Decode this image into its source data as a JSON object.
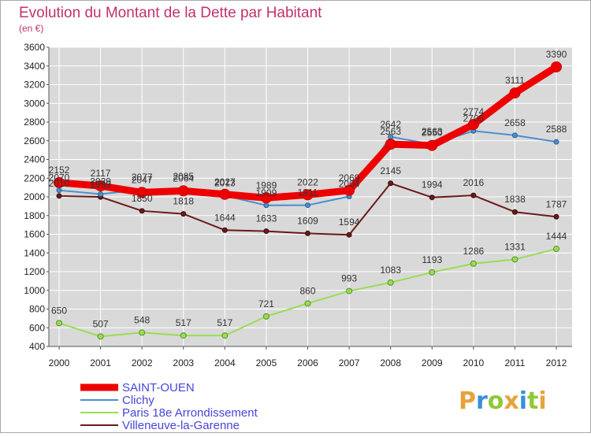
{
  "chart_data": {
    "type": "line",
    "title": "Evolution du Montant de la Dette par Habitant",
    "subtitle": "(en €)",
    "xlabel": "",
    "ylabel": "",
    "ylim": [
      400,
      3600
    ],
    "y_ticks": [
      400,
      600,
      800,
      1000,
      1200,
      1400,
      1600,
      1800,
      2000,
      2200,
      2400,
      2600,
      2800,
      3000,
      3200,
      3400,
      3600
    ],
    "categories": [
      "2000",
      "2001",
      "2002",
      "2003",
      "2004",
      "2005",
      "2006",
      "2007",
      "2008",
      "2009",
      "2010",
      "2011",
      "2012"
    ],
    "grid": true,
    "legend_position": "bottom-left",
    "series": [
      {
        "name": "SAINT-OUEN",
        "color": "#ee0000",
        "values": [
          2152,
          2117,
          2047,
          2064,
          2027,
          1989,
          2022,
          2069,
          2563,
          2550,
          2774,
          3111,
          3390
        ],
        "labels": [
          "2152",
          "2117",
          "2047",
          "2064",
          "2027",
          "1989",
          "2022",
          "2069",
          "2563",
          "2550",
          "2774",
          "3111",
          "3390"
        ]
      },
      {
        "name": "Clichy",
        "color": "#4a8fd0",
        "values": [
          2070,
          2029,
          2077,
          2085,
          2013,
          1909,
          1911,
          2004,
          2642,
          2563,
          2705,
          2658,
          2588
        ],
        "labels": [
          "2070",
          "2029",
          "2077",
          "2085",
          "2013",
          "1909",
          "1911",
          "2004",
          "2642",
          "2563",
          "2705",
          "2658",
          "2588"
        ]
      },
      {
        "name": "Paris 18e  Arrondissement",
        "color": "#99dd55",
        "values": [
          650,
          507,
          548,
          517,
          517,
          721,
          860,
          993,
          1083,
          1193,
          1286,
          1331,
          1444
        ],
        "labels": [
          "650",
          "507",
          "548",
          "517",
          "517",
          "721",
          "860",
          "993",
          "1083",
          "1193",
          "1286",
          "1331",
          "1444"
        ]
      },
      {
        "name": "Villeneuve-la-Garenne",
        "color": "#6b1a1a",
        "values": [
          2010,
          1999,
          1850,
          1818,
          1644,
          1633,
          1609,
          1594,
          2145,
          1994,
          2016,
          1838,
          1787
        ],
        "labels": [
          "2010",
          "1999",
          "1850",
          "1818",
          "1644",
          "1633",
          "1609",
          "1594",
          "2145",
          "1994",
          "2016",
          "1838",
          "1787"
        ]
      }
    ]
  },
  "branding": {
    "logo_text": "Proxiti",
    "logo_colors": [
      "#e8a23a",
      "#3a8fd6",
      "#8fc93a",
      "#e8a23a",
      "#3a8fd6",
      "#8fc93a",
      "#e8a23a"
    ]
  }
}
